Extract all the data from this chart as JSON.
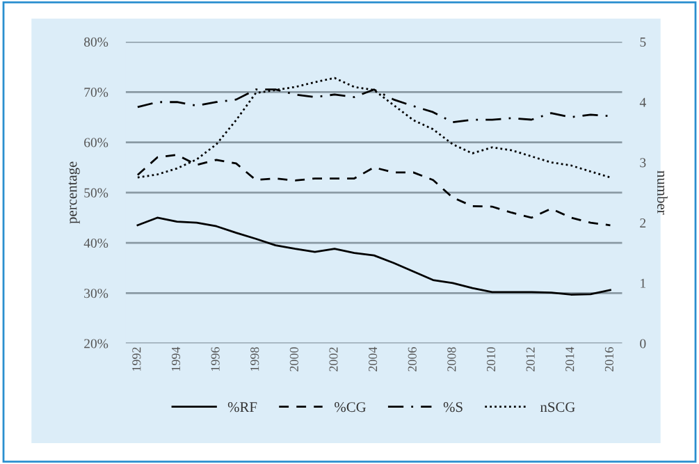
{
  "chart_data": {
    "type": "line",
    "ylabel": "percentage",
    "y2label": "number",
    "categories": [
      "1992",
      null,
      "1994",
      null,
      "1996",
      null,
      "1998",
      null,
      "2000",
      null,
      "2002",
      null,
      "2004",
      null,
      "2006",
      null,
      "2008",
      null,
      "2010",
      null,
      "2012",
      null,
      "2014",
      null,
      "2016"
    ],
    "series": [
      {
        "name": "%RF",
        "color": "#000000",
        "line_style": "solid",
        "values": [
          43.5,
          45,
          44.2,
          44,
          43.3,
          42,
          40.8,
          39.5,
          38.8,
          38.2,
          38.8,
          38,
          37.5,
          36,
          34.3,
          32.6,
          32,
          31,
          30.2,
          30.2,
          30.2,
          30.1,
          29.7,
          29.8,
          30.6
        ]
      },
      {
        "name": "%CG",
        "color": "#000000",
        "line_style": "dashed",
        "values": [
          53.5,
          57,
          57.5,
          55.5,
          56.5,
          55.8,
          52.5,
          52.8,
          52.4,
          52.8,
          52.8,
          52.8,
          55,
          54,
          54,
          52.5,
          49,
          47.3,
          47.2,
          46,
          45,
          46.8,
          45,
          44,
          43.5
        ]
      },
      {
        "name": "%S",
        "color": "#000000",
        "line_style": "dashdot",
        "values": [
          67,
          68,
          68,
          67.3,
          68,
          68.5,
          70.5,
          70.5,
          69.5,
          69,
          69.5,
          69,
          70.5,
          68.5,
          67.2,
          66,
          64,
          64.5,
          64.5,
          64.8,
          64.5,
          65.8,
          65,
          65.5,
          65.2
        ]
      },
      {
        "name": "nSCG",
        "color": "#000000",
        "line_style": "dotted",
        "axis": "y2",
        "values": [
          2.75,
          2.8,
          2.9,
          3.05,
          3.3,
          3.7,
          4.15,
          4.2,
          4.25,
          4.33,
          4.4,
          4.25,
          4.2,
          3.95,
          3.7,
          3.55,
          3.3,
          3.15,
          3.25,
          3.2,
          3.1,
          3.0,
          2.95,
          2.85,
          2.75
        ]
      }
    ],
    "ylim": [
      20,
      80
    ],
    "yticks": [
      {
        "value": 20,
        "label": "20%"
      },
      {
        "value": 30,
        "label": "30%"
      },
      {
        "value": 40,
        "label": "40%"
      },
      {
        "value": 50,
        "label": "50%"
      },
      {
        "value": 60,
        "label": "60%"
      },
      {
        "value": 70,
        "label": "70%"
      },
      {
        "value": 80,
        "label": "80%"
      }
    ],
    "y2lim": [
      0,
      5
    ],
    "y2ticks": [
      0,
      1,
      2,
      3,
      4,
      5
    ],
    "grid": "y",
    "legend": "bottom"
  }
}
